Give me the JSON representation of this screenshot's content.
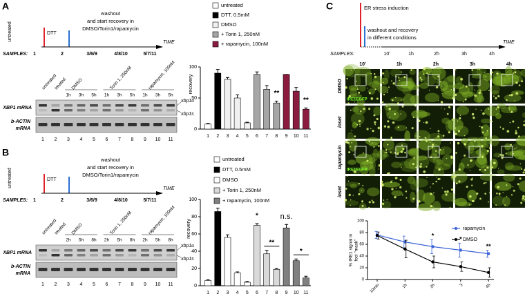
{
  "panels": {
    "A": {
      "label": "A",
      "timeline": {
        "start": "untreated",
        "treatment": "DTT",
        "washout": [
          "washout",
          "and start recovery in",
          "DMSO/Torin1/rapamycin"
        ],
        "time": "TIME",
        "samples_label": "SAMPLES:",
        "samples": [
          "1",
          "2",
          "3/6/9",
          "4/8/10",
          "5/7/11"
        ]
      },
      "gel": {
        "lane_headers": [
          "untreated",
          "treated",
          "DMSO",
          "Torin 1, 250nM",
          "rapamycin, 100nM"
        ],
        "times": [
          "1h",
          "3h",
          "5h",
          "1h",
          "3h",
          "5h",
          "1h",
          "3h",
          "5h"
        ],
        "row1": [
          "XBP1 mRNA"
        ],
        "row2": [
          "b-ACTIN",
          "mRNA"
        ],
        "bands": [
          "xbp1u",
          "xbp1s"
        ],
        "lanes": [
          "1",
          "2",
          "3",
          "4",
          "5",
          "6",
          "7",
          "8",
          "9",
          "10",
          "11"
        ]
      }
    },
    "B": {
      "label": "B",
      "timeline": {
        "start": "untreated",
        "treatment": "DTT",
        "washout": [
          "washout",
          "and start recovery in",
          "DMSO/Torin1/rapamycin"
        ],
        "time": "TIME",
        "samples_label": "SAMPLES:",
        "samples": [
          "1",
          "2",
          "3/6/9",
          "4/8/10",
          "5/7/11"
        ]
      },
      "gel": {
        "lane_headers": [
          "untreated",
          "treated",
          "DMSO",
          "Torin 1, 250nM",
          "rapamycin, 100nM"
        ],
        "times": [
          "2h",
          "5h",
          "8h",
          "2h",
          "5h",
          "8h",
          "2h",
          "5h",
          "8h"
        ],
        "row1": [
          "XBP1 mRNA"
        ],
        "row2": [
          "b-ACTIN",
          "mRNA"
        ],
        "bands": [
          "xbp1u",
          "xbp1s"
        ],
        "lanes": [
          "1",
          "2",
          "3",
          "4",
          "5",
          "6",
          "7",
          "8",
          "9",
          "10",
          "11"
        ]
      }
    },
    "C": {
      "label": "C",
      "timeline": {
        "stress": "ER stress induction",
        "washout": [
          "washout and recovery",
          "in different conditions"
        ],
        "samples_label": "SAMPLES:",
        "samples": [
          "10'",
          "1h",
          "2h",
          "3h",
          "4h"
        ],
        "time": "TIME"
      },
      "micrographs": {
        "columns": [
          "10'",
          "1h",
          "2h",
          "3h",
          "4h"
        ],
        "rows": [
          "DMSO",
          "inset",
          "rapamycin",
          "inset"
        ],
        "channel": "IRE1EGFP"
      }
    }
  },
  "chart_data": [
    {
      "type": "bar",
      "y_label": "recovery",
      "categories": [
        "1",
        "2",
        "3",
        "4",
        "5",
        "6",
        "7",
        "8",
        "9",
        "10",
        "11"
      ],
      "values": [
        8,
        90,
        80,
        50,
        10,
        88,
        64,
        42,
        88,
        61,
        32
      ],
      "errors": [
        1,
        6,
        3,
        5,
        1,
        4,
        6,
        3,
        0,
        6,
        2
      ],
      "colors": [
        "#ffffff",
        "#000000",
        "#f0f0f0",
        "#f0f0f0",
        "#f0f0f0",
        "#a6a6a6",
        "#a6a6a6",
        "#a6a6a6",
        "#8b1c3f",
        "#8b1c3f",
        "#8b1c3f"
      ],
      "ylim": [
        0,
        100
      ],
      "yticks": [
        0,
        50,
        100
      ],
      "legend": [
        {
          "name": "untreated",
          "color": "#ffffff"
        },
        {
          "name": "DTT, 0.5mM",
          "color": "#000000"
        },
        {
          "name": "DMSO",
          "color": "#f0f0f0"
        },
        {
          "name": "+ Torin 1, 250nM",
          "color": "#a6a6a6"
        },
        {
          "name": "+ rapamycin, 100nM",
          "color": "#8b1c3f"
        }
      ],
      "annotations": [
        {
          "text": "**",
          "categories": [
            "8"
          ]
        },
        {
          "text": "**",
          "categories": [
            "11"
          ]
        }
      ]
    },
    {
      "type": "bar",
      "y_label": "recovery",
      "categories": [
        "1",
        "2",
        "3",
        "4",
        "5",
        "6",
        "7",
        "8",
        "9",
        "10",
        "11"
      ],
      "values": [
        6,
        86,
        56,
        15,
        4,
        70,
        37,
        19,
        67,
        29,
        9
      ],
      "errors": [
        1,
        4,
        3,
        1,
        1,
        2,
        4,
        1,
        4,
        2,
        2
      ],
      "colors": [
        "#ffffff",
        "#000000",
        "#ffffff",
        "#ffffff",
        "#ffffff",
        "#d9d9d9",
        "#d9d9d9",
        "#d9d9d9",
        "#808080",
        "#808080",
        "#808080"
      ],
      "ylim": [
        0,
        100
      ],
      "yticks": [
        0,
        20,
        40,
        60,
        80,
        100
      ],
      "legend": [
        {
          "name": "untreated",
          "color": "#ffffff"
        },
        {
          "name": "DTT, 0.5mM",
          "color": "#000000"
        },
        {
          "name": "DMSO",
          "color": "#ffffff"
        },
        {
          "name": "+ Torin 1, 250nM",
          "color": "#d9d9d9"
        },
        {
          "name": "+ rapamycin, 100nM",
          "color": "#808080"
        }
      ],
      "annotations": [
        {
          "text": "*",
          "categories": [
            "6"
          ]
        },
        {
          "text": "**",
          "categories": [
            "7",
            "8"
          ]
        },
        {
          "text": "n.s.",
          "categories": [
            "9"
          ]
        },
        {
          "text": "*",
          "categories": [
            "10",
            "11"
          ]
        }
      ]
    },
    {
      "type": "line",
      "y_label": [
        "% IRE1 signal in",
        "foci \"mask\""
      ],
      "categories": [
        "10min",
        "1h",
        "2h",
        "3",
        "4h"
      ],
      "series": [
        {
          "name": "rapamycin",
          "color": "#3a62d6",
          "values": [
            76,
            64,
            56,
            50,
            44
          ],
          "errors": [
            6,
            10,
            12,
            12,
            6
          ]
        },
        {
          "name": "DMSO",
          "color": "#000000",
          "values": [
            75,
            52,
            30,
            22,
            12
          ],
          "errors": [
            6,
            15,
            10,
            8,
            8
          ]
        }
      ],
      "ylim": [
        0,
        100
      ],
      "yticks": [
        0,
        20,
        40,
        60,
        80,
        100
      ],
      "legend_position": "upper right",
      "annotations": [
        {
          "text": "*",
          "categories": [
            "2h"
          ]
        },
        {
          "text": "*",
          "categories": [
            "3"
          ]
        },
        {
          "text": "**",
          "categories": [
            "4h"
          ]
        }
      ]
    }
  ]
}
